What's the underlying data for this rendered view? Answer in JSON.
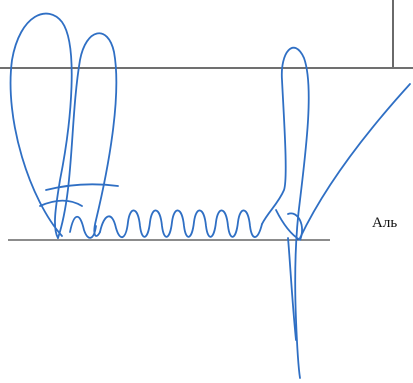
{
  "document": {
    "signer_name": "Аль",
    "signature_text": ""
  },
  "colors": {
    "ink": "#2f6fc4",
    "rule": "#1a1a1a",
    "paper": "#ffffff"
  },
  "icons": {
    "signature": "handwritten-signature-icon"
  }
}
